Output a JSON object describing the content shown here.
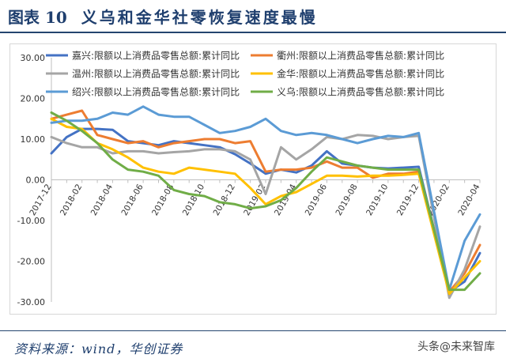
{
  "header": {
    "figure_no": "图表 10",
    "title": "义乌和金华社零恢复速度最慢"
  },
  "footer": {
    "source": "资料来源：wind，华创证券",
    "watermark": "头条@未来智库"
  },
  "colors": {
    "title": "#1f3f6e",
    "series": [
      "#4472c4",
      "#ed7d31",
      "#a5a5a5",
      "#ffc000",
      "#5b9bd5",
      "#70ad47"
    ]
  },
  "chart_data": {
    "type": "line",
    "title": "",
    "xlabel": "",
    "ylabel": "",
    "ylim": [
      -30,
      30
    ],
    "yticks": [
      30,
      20,
      10,
      0,
      -10,
      -20,
      -30
    ],
    "ytick_labels": [
      "30.00",
      "20.00",
      "10.00",
      "0.00",
      "-10.00",
      "-20.00",
      "-30.00"
    ],
    "x": [
      "2017-12",
      "2018-01",
      "2018-02",
      "2018-03",
      "2018-04",
      "2018-05",
      "2018-06",
      "2018-07",
      "2018-08",
      "2018-09",
      "2018-10",
      "2018-11",
      "2018-12",
      "2019-01",
      "2019-02",
      "2019-03",
      "2019-04",
      "2019-05",
      "2019-06",
      "2019-07",
      "2019-08",
      "2019-09",
      "2019-10",
      "2019-11",
      "2019-12",
      "2020-01",
      "2020-02",
      "2020-03",
      "2020-04"
    ],
    "xtick_labels": [
      "2017-12",
      "2018-02",
      "2018-04",
      "2018-06",
      "2018-08",
      "2018-10",
      "2018-12",
      "2019-02",
      "2019-04",
      "2019-06",
      "2019-08",
      "2019-10",
      "2019-12",
      "2020-02",
      "2020-04"
    ],
    "legend_position": "top",
    "grid": false,
    "series": [
      {
        "name": "嘉兴:限额以上消费品零售总额:累计同比",
        "values": [
          6.5,
          10.5,
          12.5,
          12.5,
          12.3,
          9.5,
          9.0,
          8.5,
          9.5,
          9.0,
          8.5,
          8.0,
          6.3,
          4.0,
          1.5,
          2.5,
          1.8,
          3.5,
          7.0,
          4.0,
          3.5,
          3.0,
          2.8,
          3.0,
          3.2,
          null,
          -27.5,
          -25.0,
          -18.0
        ]
      },
      {
        "name": "衢州:限额以上消费品零售总额:累计同比",
        "values": [
          15.0,
          16.0,
          17.0,
          11.0,
          10.0,
          9.0,
          9.5,
          8.0,
          9.0,
          9.5,
          10.0,
          10.0,
          9.0,
          9.5,
          2.0,
          2.5,
          2.5,
          3.0,
          4.5,
          3.0,
          3.0,
          0.5,
          1.5,
          1.5,
          2.0,
          null,
          -27.5,
          -23.0,
          -16.0
        ]
      },
      {
        "name": "温州:限额以上消费品零售总额:累计同比",
        "values": [
          10.5,
          9.0,
          8.0,
          8.0,
          6.5,
          7.0,
          7.0,
          6.5,
          6.8,
          7.0,
          7.5,
          7.5,
          7.0,
          5.0,
          -3.5,
          8.0,
          5.0,
          7.5,
          10.5,
          10.0,
          11.0,
          10.8,
          10.0,
          10.5,
          10.8,
          null,
          -29.0,
          -22.0,
          -11.5
        ]
      },
      {
        "name": "金华:限额以上消费品零售总额:累计同比",
        "values": [
          15.0,
          13.0,
          12.5,
          9.0,
          7.5,
          5.5,
          3.0,
          2.0,
          1.5,
          3.0,
          2.5,
          2.0,
          1.5,
          -2.0,
          -6.0,
          -4.0,
          -3.0,
          -1.0,
          1.0,
          1.0,
          0.8,
          1.0,
          1.0,
          1.2,
          1.5,
          null,
          -28.0,
          -24.0,
          -20.0
        ]
      },
      {
        "name": "绍兴:限额以上消费品零售总额:累计同比",
        "values": [
          14.0,
          14.5,
          14.5,
          15.0,
          16.5,
          16.0,
          18.0,
          16.0,
          15.5,
          15.5,
          13.5,
          11.5,
          12.0,
          13.0,
          15.0,
          12.0,
          11.0,
          11.5,
          11.0,
          10.0,
          9.0,
          10.0,
          10.8,
          10.5,
          11.5,
          null,
          -27.0,
          -15.0,
          -8.5
        ]
      },
      {
        "name": "义乌:限额以上消费品零售总额:累计同比",
        "values": [
          16.5,
          14.5,
          12.0,
          9.0,
          5.0,
          2.5,
          2.0,
          1.0,
          -2.5,
          -3.5,
          -4.0,
          -5.5,
          -6.0,
          -7.0,
          -6.5,
          -5.0,
          -2.0,
          2.0,
          5.5,
          4.5,
          3.5,
          3.0,
          2.5,
          2.5,
          2.5,
          null,
          -27.0,
          -27.0,
          -23.0
        ]
      }
    ]
  }
}
